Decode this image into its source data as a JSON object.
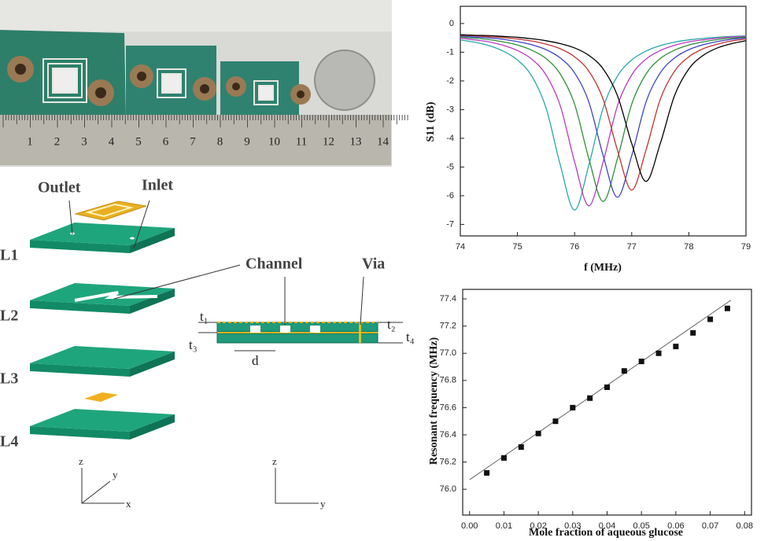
{
  "photo": {
    "ruler_labels": [
      "1",
      "2",
      "3",
      "4",
      "5",
      "6",
      "7",
      "8",
      "9",
      "10",
      "11",
      "12",
      "13",
      "14"
    ]
  },
  "diagram": {
    "outlet": "Outlet",
    "inlet": "Inlet",
    "layers": [
      "L1",
      "L2",
      "L3",
      "L4"
    ],
    "channel": "Channel",
    "via": "Via",
    "t1": "t₁",
    "t2": "t₂",
    "t3": "t₃",
    "t4": "t₄",
    "d": "d",
    "axes_3d": [
      "z",
      "y",
      "x"
    ],
    "axes_2d": [
      "z",
      "y"
    ]
  },
  "chart_data": [
    {
      "type": "line",
      "xlabel": "f (MHz)",
      "ylabel": "S11 (dB)",
      "x": [
        74,
        74.25,
        74.5,
        74.75,
        75,
        75.25,
        75.5,
        75.75,
        76,
        76.25,
        76.5,
        76.75,
        77,
        77.25,
        77.5,
        77.75,
        78,
        78.25,
        78.5,
        78.75,
        79
      ],
      "xlim": [
        74,
        79
      ],
      "xticks": [
        74,
        75,
        76,
        77,
        78,
        79
      ],
      "ylim": [
        -7.4,
        0.6
      ],
      "yticks": [
        0,
        -1,
        -2,
        -3,
        -4,
        -5,
        -6,
        -7
      ],
      "series": [
        {
          "color": "#2aa6a6",
          "values": [
            -0.57,
            -0.65,
            -0.77,
            -0.96,
            -1.27,
            -1.83,
            -2.94,
            -4.93,
            -6.5,
            -4.93,
            -2.94,
            -1.83,
            -1.27,
            -0.96,
            -0.77,
            -0.65,
            -0.57,
            -0.52,
            -0.48,
            -0.45,
            -0.43
          ]
        },
        {
          "color": "#b83cc0",
          "values": [
            -0.51,
            -0.57,
            -0.64,
            -0.76,
            -0.94,
            -1.24,
            -1.79,
            -2.87,
            -4.82,
            -6.35,
            -4.82,
            -2.87,
            -1.79,
            -1.24,
            -0.94,
            -0.76,
            -0.64,
            -0.57,
            -0.51,
            -0.47,
            -0.45
          ]
        },
        {
          "color": "#2f8f3a",
          "values": [
            -0.47,
            -0.51,
            -0.56,
            -0.64,
            -0.75,
            -0.93,
            -1.22,
            -1.76,
            -2.81,
            -4.71,
            -6.2,
            -4.71,
            -2.81,
            -1.76,
            -1.22,
            -0.93,
            -0.75,
            -0.64,
            -0.56,
            -0.51,
            -0.47
          ]
        },
        {
          "color": "#3c44c4",
          "values": [
            -0.44,
            -0.47,
            -0.5,
            -0.55,
            -0.63,
            -0.74,
            -0.91,
            -1.2,
            -1.72,
            -2.74,
            -4.6,
            -6.05,
            -4.6,
            -2.74,
            -1.72,
            -1.2,
            -0.91,
            -0.74,
            -0.63,
            -0.55,
            -0.5
          ]
        },
        {
          "color": "#c23434",
          "values": [
            -0.41,
            -0.43,
            -0.46,
            -0.49,
            -0.54,
            -0.61,
            -0.72,
            -0.88,
            -1.16,
            -1.66,
            -2.64,
            -4.41,
            -5.8,
            -4.41,
            -2.64,
            -1.66,
            -1.16,
            -0.88,
            -0.72,
            -0.61,
            -0.54
          ]
        },
        {
          "color": "#000000",
          "values": [
            -0.39,
            -0.41,
            -0.42,
            -0.45,
            -0.48,
            -0.53,
            -0.6,
            -0.7,
            -0.85,
            -1.11,
            -1.58,
            -2.51,
            -4.18,
            -5.5,
            -4.18,
            -2.51,
            -1.58,
            -1.11,
            -0.85,
            -0.7,
            -0.6
          ]
        }
      ]
    },
    {
      "type": "scatter",
      "xlabel": "Mole fraction of aqueous glucose",
      "ylabel": "Resonant frequency (MHz)",
      "x": [
        0.005,
        0.01,
        0.015,
        0.02,
        0.025,
        0.03,
        0.035,
        0.04,
        0.045,
        0.05,
        0.055,
        0.06,
        0.065,
        0.07,
        0.075
      ],
      "values": [
        76.12,
        76.23,
        76.31,
        76.41,
        76.5,
        76.6,
        76.67,
        76.75,
        76.87,
        76.94,
        77.0,
        77.05,
        77.15,
        77.25,
        77.33
      ],
      "color": "#111111",
      "fit_line": {
        "x": [
          0,
          0.076
        ],
        "values": [
          76.07,
          77.39
        ],
        "color": "#666666"
      },
      "xlim": [
        -0.002,
        0.082
      ],
      "xticks": [
        {
          "value": 0,
          "label": "0.00"
        },
        {
          "value": 0.01,
          "label": "0.01"
        },
        {
          "value": 0.02,
          "label": "0.02"
        },
        {
          "value": 0.03,
          "label": "0.03"
        },
        {
          "value": 0.04,
          "label": "0.04"
        },
        {
          "value": 0.05,
          "label": "0.05"
        },
        {
          "value": 0.06,
          "label": "0.06"
        },
        {
          "value": 0.07,
          "label": "0.07"
        },
        {
          "value": 0.08,
          "label": "0.08"
        }
      ],
      "ylim": [
        75.81,
        77.47
      ],
      "yticks": [
        {
          "value": 76,
          "label": "76.0"
        },
        76.2,
        76.4,
        76.6,
        76.8,
        {
          "value": 77,
          "label": "77.0"
        },
        77.2,
        77.4
      ]
    }
  ]
}
